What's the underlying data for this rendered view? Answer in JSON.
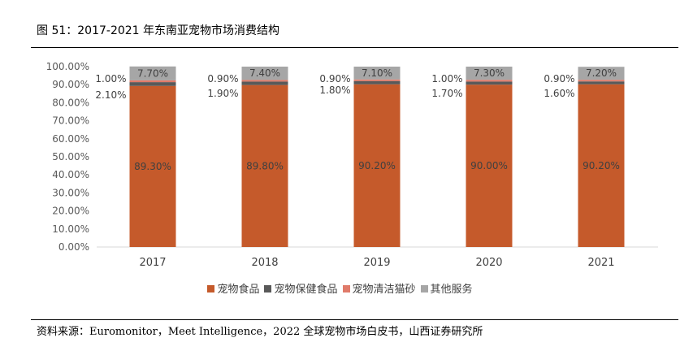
{
  "figure": {
    "title": "图 51：2017-2021 年东南亚宠物市场消费结构",
    "source": "资料来源：Euromonitor，Meet Intelligence，2022 全球宠物市场白皮书，山西证券研究所"
  },
  "colors": {
    "food": "#c55a2b",
    "health": "#595959",
    "litter": "#e07b6a",
    "service": "#a6a6a6"
  },
  "chart_data": {
    "type": "bar",
    "stacked": true,
    "categories": [
      "2017",
      "2018",
      "2019",
      "2020",
      "2021"
    ],
    "y_ticks": [
      "0.00%",
      "10.00%",
      "20.00%",
      "30.00%",
      "40.00%",
      "50.00%",
      "60.00%",
      "70.00%",
      "80.00%",
      "90.00%",
      "100.00%"
    ],
    "ylim": [
      0,
      100
    ],
    "series": [
      {
        "name": "宠物食品",
        "values": [
          89.3,
          89.8,
          90.2,
          90.0,
          90.2
        ],
        "labels": [
          "89.30%",
          "89.80%",
          "90.20%",
          "90.00%",
          "90.20%"
        ]
      },
      {
        "name": "宠物保健食品",
        "values": [
          2.1,
          1.9,
          1.8,
          1.7,
          1.6
        ],
        "labels": [
          "2.10%",
          "1.90%",
          "1.80%",
          "1.70%",
          "1.60%"
        ]
      },
      {
        "name": "宠物清洁猫砂",
        "values": [
          1.0,
          0.9,
          0.9,
          1.0,
          0.9
        ],
        "labels": [
          "1.00%",
          "0.90%",
          "0.90%",
          "1.00%",
          "0.90%"
        ]
      },
      {
        "name": "其他服务",
        "values": [
          7.7,
          7.4,
          7.1,
          7.3,
          7.2
        ],
        "labels": [
          "7.70%",
          "7.40%",
          "7.10%",
          "7.30%",
          "7.20%"
        ]
      }
    ],
    "legend_position": "bottom",
    "grid": false
  }
}
